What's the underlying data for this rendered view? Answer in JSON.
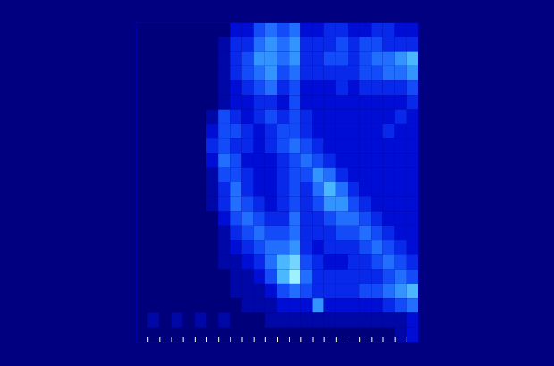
{
  "chart_data": {
    "type": "heatmap",
    "xlim": [
      0,
      24
    ],
    "ylim": [
      0,
      22
    ],
    "xticks": [
      1,
      2,
      3,
      4,
      5,
      6,
      7,
      8,
      9,
      10,
      11,
      12,
      13,
      14,
      15,
      16,
      17,
      18,
      19,
      20,
      21,
      22,
      23
    ],
    "tick_labels": false,
    "zlim": [
      0,
      9
    ],
    "z": [
      [
        0,
        0,
        0,
        0,
        0,
        0,
        0,
        0,
        2,
        2,
        4,
        5,
        4,
        5,
        2,
        2,
        3,
        3,
        2,
        2,
        3,
        3,
        2,
        2
      ],
      [
        0,
        0,
        0,
        0,
        0,
        0,
        0,
        1,
        3,
        3,
        5,
        6,
        5,
        6,
        3,
        3,
        3,
        4,
        3,
        4,
        4,
        3,
        3,
        3
      ],
      [
        0,
        0,
        0,
        0,
        0,
        0,
        0,
        1,
        3,
        4,
        6,
        6,
        5,
        6,
        3,
        3,
        4,
        4,
        3,
        4,
        5,
        5,
        6,
        7
      ],
      [
        0,
        0,
        0,
        0,
        0,
        0,
        0,
        1,
        3,
        4,
        5,
        6,
        4,
        5,
        3,
        3,
        3,
        3,
        3,
        4,
        4,
        5,
        5,
        6
      ],
      [
        0,
        0,
        0,
        0,
        0,
        0,
        0,
        1,
        2,
        3,
        4,
        5,
        3,
        4,
        2,
        2,
        2,
        3,
        2,
        3,
        3,
        3,
        3,
        4
      ],
      [
        0,
        0,
        0,
        0,
        0,
        0,
        0,
        1,
        2,
        2,
        3,
        3,
        2,
        4,
        2,
        2,
        2,
        2,
        2,
        2,
        2,
        2,
        2,
        3
      ],
      [
        0,
        0,
        0,
        0,
        0,
        0,
        1,
        4,
        3,
        2,
        3,
        4,
        3,
        4,
        3,
        2,
        2,
        2,
        2,
        2,
        2,
        2,
        3,
        2
      ],
      [
        0,
        0,
        0,
        0,
        0,
        0,
        2,
        4,
        4,
        3,
        2,
        3,
        4,
        4,
        3,
        2,
        2,
        2,
        2,
        2,
        2,
        3,
        2,
        2
      ],
      [
        0,
        0,
        0,
        0,
        0,
        0,
        3,
        4,
        3,
        3,
        2,
        3,
        4,
        5,
        4,
        3,
        2,
        2,
        2,
        2,
        2,
        2,
        2,
        2
      ],
      [
        0,
        0,
        0,
        0,
        0,
        0,
        2,
        5,
        4,
        2,
        2,
        2,
        3,
        4,
        5,
        4,
        3,
        2,
        2,
        2,
        2,
        2,
        2,
        2
      ],
      [
        0,
        0,
        0,
        0,
        0,
        0,
        1,
        4,
        4,
        3,
        2,
        2,
        3,
        4,
        4,
        6,
        5,
        3,
        2,
        2,
        2,
        2,
        2,
        2
      ],
      [
        0,
        0,
        0,
        0,
        0,
        0,
        1,
        3,
        5,
        3,
        2,
        2,
        3,
        4,
        3,
        5,
        7,
        5,
        3,
        2,
        2,
        2,
        2,
        2
      ],
      [
        0,
        0,
        0,
        0,
        0,
        0,
        1,
        3,
        5,
        4,
        3,
        2,
        3,
        4,
        3,
        4,
        6,
        6,
        4,
        3,
        2,
        2,
        2,
        2
      ],
      [
        0,
        0,
        0,
        0,
        0,
        0,
        0,
        2,
        4,
        5,
        4,
        3,
        3,
        5,
        3,
        3,
        4,
        5,
        5,
        4,
        3,
        2,
        2,
        2
      ],
      [
        0,
        0,
        0,
        0,
        0,
        0,
        0,
        1,
        3,
        4,
        5,
        4,
        4,
        5,
        3,
        3,
        3,
        4,
        4,
        5,
        4,
        3,
        2,
        2
      ],
      [
        0,
        0,
        0,
        0,
        0,
        0,
        0,
        1,
        2,
        3,
        4,
        5,
        5,
        6,
        3,
        2,
        3,
        3,
        3,
        4,
        5,
        4,
        3,
        2
      ],
      [
        0,
        0,
        0,
        0,
        0,
        0,
        0,
        1,
        1,
        2,
        3,
        5,
        7,
        8,
        4,
        3,
        2,
        2,
        3,
        3,
        4,
        5,
        4,
        3
      ],
      [
        0,
        0,
        0,
        0,
        0,
        0,
        0,
        0,
        1,
        1,
        2,
        4,
        7,
        9,
        5,
        3,
        3,
        3,
        3,
        3,
        3,
        4,
        5,
        4
      ],
      [
        0,
        0,
        0,
        0,
        0,
        0,
        0,
        0,
        1,
        1,
        1,
        2,
        4,
        5,
        4,
        3,
        3,
        3,
        3,
        4,
        4,
        5,
        6,
        7
      ],
      [
        0,
        0,
        0,
        0,
        0,
        0,
        0,
        0,
        0,
        1,
        1,
        1,
        2,
        2,
        2,
        6,
        2,
        2,
        2,
        2,
        2,
        3,
        4,
        5
      ],
      [
        0,
        1,
        0,
        1,
        0,
        1,
        0,
        1,
        0,
        0,
        0,
        1,
        1,
        1,
        1,
        1,
        1,
        1,
        1,
        1,
        1,
        1,
        1,
        2
      ],
      [
        0,
        0,
        0,
        0,
        0,
        0,
        0,
        0,
        0,
        0,
        0,
        0,
        0,
        0,
        0,
        0,
        0,
        0,
        0,
        0,
        0,
        0,
        1,
        2
      ]
    ]
  }
}
